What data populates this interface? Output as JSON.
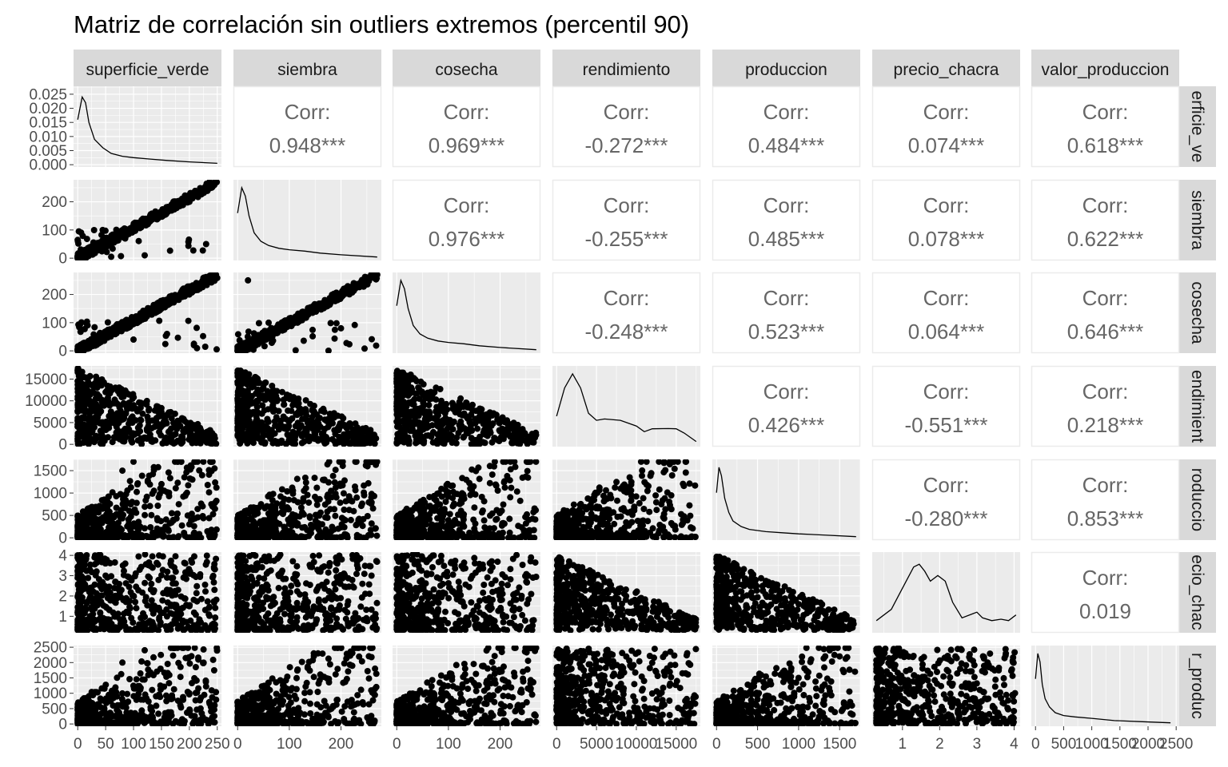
{
  "chart_data": {
    "type": "scatter-matrix",
    "title": "Matriz de correlación sin outliers extremos (percentil 90)",
    "colors": {
      "panel_bg": "#ebebeb",
      "grid": "#ffffff",
      "strip_bg": "#d9d9d9",
      "point": "#000000",
      "corr_text": "#666666",
      "corr_border": "#ebebeb"
    },
    "variables": [
      {
        "name": "superficie_verde",
        "row_label": "erficie_ve",
        "range": [
          0,
          250
        ],
        "ticks": [
          0,
          50,
          100,
          150,
          200,
          250
        ],
        "tick_labels": [
          "0",
          "50",
          "100",
          "150",
          "200",
          "250"
        ]
      },
      {
        "name": "siembra",
        "row_label": "siembra",
        "range": [
          0,
          270
        ],
        "ticks": [
          0,
          100,
          200
        ],
        "tick_labels": [
          "0",
          "100",
          "200"
        ]
      },
      {
        "name": "cosecha",
        "row_label": "cosecha",
        "range": [
          0,
          270
        ],
        "ticks": [
          0,
          100,
          200
        ],
        "tick_labels": [
          "0",
          "100",
          "200"
        ]
      },
      {
        "name": "rendimiento",
        "row_label": "endimient",
        "range": [
          0,
          17500
        ],
        "ticks": [
          0,
          5000,
          10000,
          15000
        ],
        "tick_labels": [
          "0",
          "5000",
          "10000",
          "15000"
        ]
      },
      {
        "name": "produccion",
        "row_label": "roduccio",
        "range": [
          0,
          1700
        ],
        "ticks": [
          0,
          500,
          1000,
          1500
        ],
        "tick_labels": [
          "0",
          "500",
          "1000",
          "1500"
        ]
      },
      {
        "name": "precio_chacra",
        "row_label": "ecio_chac",
        "range": [
          0.3,
          4.05
        ],
        "ticks": [
          1,
          2,
          3,
          4
        ],
        "tick_labels": [
          "1",
          "2",
          "3",
          "4"
        ]
      },
      {
        "name": "valor_produccion",
        "row_label": "r_produc",
        "range": [
          0,
          2480
        ],
        "ticks": [
          0,
          500,
          1000,
          1500,
          2000,
          2500
        ],
        "tick_labels": [
          "0",
          "500",
          "1000",
          "1500",
          "2000",
          "2500"
        ]
      }
    ],
    "diag_y_axis": {
      "range": [
        0,
        0.027
      ],
      "ticks": [
        0,
        0.005,
        0.01,
        0.015,
        0.02,
        0.025
      ],
      "tick_labels": [
        "0.000",
        "0.005",
        "0.010",
        "0.015",
        "0.020",
        "0.025"
      ]
    },
    "correlations": [
      {
        "row": 0,
        "col": 1,
        "label": "Corr:",
        "value": "0.948***"
      },
      {
        "row": 0,
        "col": 2,
        "label": "Corr:",
        "value": "0.969***"
      },
      {
        "row": 0,
        "col": 3,
        "label": "Corr:",
        "value": "-0.272***"
      },
      {
        "row": 0,
        "col": 4,
        "label": "Corr:",
        "value": "0.484***"
      },
      {
        "row": 0,
        "col": 5,
        "label": "Corr:",
        "value": "0.074***"
      },
      {
        "row": 0,
        "col": 6,
        "label": "Corr:",
        "value": "0.618***"
      },
      {
        "row": 1,
        "col": 2,
        "label": "Corr:",
        "value": "0.976***"
      },
      {
        "row": 1,
        "col": 3,
        "label": "Corr:",
        "value": "-0.255***"
      },
      {
        "row": 1,
        "col": 4,
        "label": "Corr:",
        "value": "0.485***"
      },
      {
        "row": 1,
        "col": 5,
        "label": "Corr:",
        "value": "0.078***"
      },
      {
        "row": 1,
        "col": 6,
        "label": "Corr:",
        "value": "0.622***"
      },
      {
        "row": 2,
        "col": 3,
        "label": "Corr:",
        "value": "-0.248***"
      },
      {
        "row": 2,
        "col": 4,
        "label": "Corr:",
        "value": "0.523***"
      },
      {
        "row": 2,
        "col": 5,
        "label": "Corr:",
        "value": "0.064***"
      },
      {
        "row": 2,
        "col": 6,
        "label": "Corr:",
        "value": "0.646***"
      },
      {
        "row": 3,
        "col": 4,
        "label": "Corr:",
        "value": "0.426***"
      },
      {
        "row": 3,
        "col": 5,
        "label": "Corr:",
        "value": "-0.551***"
      },
      {
        "row": 3,
        "col": 6,
        "label": "Corr:",
        "value": "0.218***"
      },
      {
        "row": 4,
        "col": 5,
        "label": "Corr:",
        "value": "-0.280***"
      },
      {
        "row": 4,
        "col": 6,
        "label": "Corr:",
        "value": "0.853***"
      },
      {
        "row": 5,
        "col": 6,
        "label": "Corr:",
        "value": "0.019"
      }
    ],
    "densities": [
      {
        "var": "superficie_verde",
        "x": [
          0,
          8,
          14,
          20,
          30,
          45,
          60,
          80,
          100,
          130,
          160,
          200,
          250
        ],
        "y": [
          0.016,
          0.024,
          0.022,
          0.015,
          0.009,
          0.006,
          0.004,
          0.003,
          0.0025,
          0.002,
          0.0015,
          0.001,
          0.0005
        ]
      },
      {
        "var": "siembra",
        "x": [
          0,
          8,
          15,
          22,
          32,
          45,
          60,
          80,
          100,
          130,
          160,
          200,
          270
        ],
        "y": [
          0.016,
          0.025,
          0.022,
          0.015,
          0.009,
          0.006,
          0.0045,
          0.0035,
          0.003,
          0.0025,
          0.0018,
          0.0012,
          0.0004
        ]
      },
      {
        "var": "cosecha",
        "x": [
          0,
          8,
          15,
          22,
          32,
          45,
          60,
          80,
          100,
          130,
          160,
          200,
          270
        ],
        "y": [
          0.016,
          0.025,
          0.022,
          0.015,
          0.009,
          0.006,
          0.0045,
          0.0035,
          0.003,
          0.0025,
          0.0018,
          0.0012,
          0.0004
        ]
      },
      {
        "var": "rendimiento",
        "x": [
          0,
          1000,
          2000,
          3000,
          4000,
          5000,
          6000,
          8000,
          10000,
          11000,
          12000,
          14000,
          15000,
          16000,
          17500
        ],
        "y": [
          0.01,
          0.02,
          0.025,
          0.02,
          0.011,
          0.0085,
          0.009,
          0.0085,
          0.0065,
          0.0045,
          0.0055,
          0.0056,
          0.0055,
          0.004,
          0.001
        ]
      },
      {
        "var": "produccion",
        "x": [
          0,
          30,
          60,
          100,
          150,
          200,
          300,
          400,
          600,
          800,
          1000,
          1300,
          1700
        ],
        "y": [
          0.016,
          0.025,
          0.022,
          0.014,
          0.009,
          0.006,
          0.004,
          0.003,
          0.0022,
          0.0018,
          0.0014,
          0.001,
          0.0004
        ]
      },
      {
        "var": "precio_chacra",
        "x": [
          0.3,
          0.7,
          1.0,
          1.3,
          1.45,
          1.6,
          1.75,
          1.95,
          2.15,
          2.35,
          2.6,
          2.9,
          3.0,
          3.15,
          3.4,
          3.65,
          3.85,
          4.05
        ],
        "y": [
          0.0035,
          0.0075,
          0.015,
          0.0225,
          0.0235,
          0.021,
          0.0175,
          0.0195,
          0.0175,
          0.01,
          0.0045,
          0.006,
          0.0065,
          0.0045,
          0.0035,
          0.004,
          0.0035,
          0.0055
        ]
      },
      {
        "var": "valor_produccion",
        "x": [
          0,
          40,
          80,
          120,
          170,
          250,
          350,
          500,
          700,
          1000,
          1400,
          1900,
          2400
        ],
        "y": [
          0.016,
          0.025,
          0.022,
          0.014,
          0.009,
          0.006,
          0.004,
          0.003,
          0.0025,
          0.002,
          0.0012,
          0.0008,
          0.0004
        ]
      }
    ],
    "scatter_samples": {
      "siembra_vs_superficie_verde": [
        [
          5,
          3
        ],
        [
          20,
          15
        ],
        [
          50,
          45
        ],
        [
          100,
          95
        ],
        [
          150,
          150
        ],
        [
          200,
          200
        ],
        [
          240,
          250
        ],
        [
          60,
          5
        ],
        [
          120,
          10
        ],
        [
          230,
          50
        ]
      ],
      "cosecha_vs_superficie_verde": [
        [
          5,
          3
        ],
        [
          20,
          15
        ],
        [
          50,
          45
        ],
        [
          100,
          95
        ],
        [
          150,
          150
        ],
        [
          200,
          200
        ],
        [
          240,
          250
        ],
        [
          100,
          40
        ],
        [
          160,
          60
        ]
      ],
      "cosecha_vs_siembra": [
        [
          5,
          3
        ],
        [
          50,
          48
        ],
        [
          100,
          100
        ],
        [
          150,
          150
        ],
        [
          200,
          200
        ],
        [
          270,
          270
        ],
        [
          20,
          250
        ],
        [
          60,
          100
        ],
        [
          200,
          80
        ]
      ],
      "rendimiento_vs_superficie_verde": [
        [
          0,
          17000
        ],
        [
          50,
          12000
        ],
        [
          100,
          9000
        ],
        [
          150,
          7000
        ],
        [
          200,
          4000
        ],
        [
          245,
          1500
        ]
      ],
      "produccion_vs_superficie_verde": [
        [
          0,
          50
        ],
        [
          80,
          1500
        ],
        [
          100,
          1700
        ],
        [
          150,
          1200
        ],
        [
          245,
          1550
        ],
        [
          200,
          300
        ]
      ],
      "precio_chacra_vs_superficie_verde": [
        [
          0,
          4
        ],
        [
          50,
          3
        ],
        [
          100,
          2
        ],
        [
          200,
          1.5
        ],
        [
          245,
          2.3
        ]
      ],
      "valor_produccion_vs_superficie_verde": [
        [
          0,
          100
        ],
        [
          80,
          2000
        ],
        [
          120,
          2400
        ],
        [
          200,
          1000
        ],
        [
          245,
          600
        ]
      ],
      "valor_produccion_vs_produccion": [
        [
          0,
          0
        ],
        [
          500,
          800
        ],
        [
          1000,
          1500
        ],
        [
          1500,
          2200
        ],
        [
          1650,
          600
        ]
      ]
    }
  }
}
